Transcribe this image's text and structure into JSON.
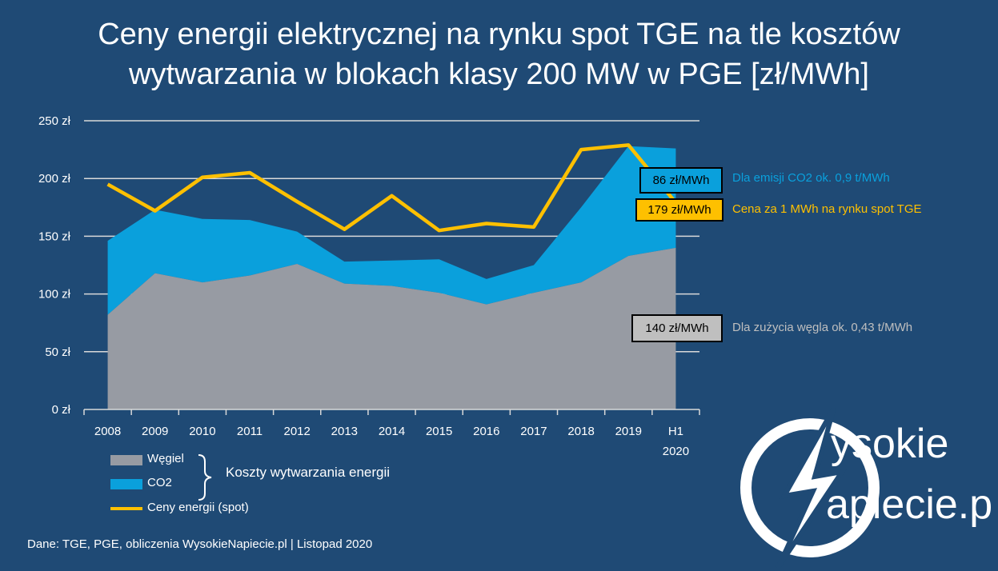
{
  "title": {
    "line1": "Ceny energii elektrycznej na rynku spot TGE na tle kosztów",
    "line2": "wytwarzania w blokach klasy 200 MW w PGE [zł/MWh]"
  },
  "chart_data": {
    "type": "area",
    "categories": [
      "2008",
      "2009",
      "2010",
      "2011",
      "2012",
      "2013",
      "2014",
      "2015",
      "2016",
      "2017",
      "2018",
      "2019",
      "H1 2020"
    ],
    "category_labels": [
      [
        "2008"
      ],
      [
        "2009"
      ],
      [
        "2010"
      ],
      [
        "2011"
      ],
      [
        "2012"
      ],
      [
        "2013"
      ],
      [
        "2014"
      ],
      [
        "2015"
      ],
      [
        "2016"
      ],
      [
        "2017"
      ],
      [
        "2018"
      ],
      [
        "2019"
      ],
      [
        "H1",
        "2020"
      ]
    ],
    "stacked_series": [
      {
        "name": "Węgiel",
        "type": "area",
        "color": "#979ba3",
        "values": [
          82,
          118,
          110,
          116,
          126,
          109,
          107,
          101,
          91,
          101,
          110,
          133,
          140
        ]
      },
      {
        "name": "CO2",
        "type": "area",
        "color": "#0aa0dc",
        "values": [
          64,
          55,
          55,
          48,
          28,
          19,
          22,
          29,
          22,
          24,
          65,
          95,
          86
        ]
      }
    ],
    "line_series": {
      "name": "Ceny energii (spot)",
      "type": "line",
      "color": "#fec000",
      "values": [
        195,
        172,
        201,
        205,
        180,
        156,
        185,
        155,
        161,
        158,
        225,
        229,
        179
      ]
    },
    "y_ticks": [
      "0 zł",
      "50 zł",
      "100 zł",
      "150 zł",
      "200 zł",
      "250 zł"
    ],
    "ylim": [
      0,
      250
    ],
    "grid": true,
    "legend_group_label": "Koszty wytwarzania energii",
    "callouts": [
      {
        "value": "86 zł/MWh",
        "text": "Dla emisji CO2 ok. 0,9 t/MWh",
        "box_color": "#0aa0dc",
        "text_color": "#0aa0dc"
      },
      {
        "value": "179 zł/MWh",
        "text": "Cena za 1 MWh na rynku spot TGE",
        "box_color": "#fec000",
        "text_color": "#fec000"
      },
      {
        "value": "140 zł/MWh",
        "text": "Dla zużycia węgla ok. 0,43 t/MWh",
        "box_color": "#bfbfbf",
        "text_color": "#bfbfbf"
      }
    ]
  },
  "source": "Dane: TGE, PGE, obliczenia WysokieNapiecie.pl   |  Listopad 2020",
  "logo": {
    "line1": "ysokie",
    "line2": "apiecie.pl"
  }
}
